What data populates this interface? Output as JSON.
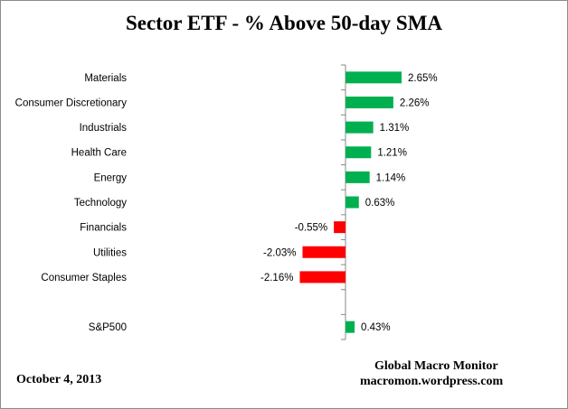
{
  "chart_data": {
    "type": "bar",
    "orientation": "horizontal",
    "title": "Sector ETF - % Above 50-day SMA",
    "categories": [
      "Materials",
      "Consumer Discretionary",
      "Industrials",
      "Health Care",
      "Energy",
      "Technology",
      "Financials",
      "Utilities",
      "Consumer Staples",
      "",
      "S&P500"
    ],
    "values": [
      2.65,
      2.26,
      1.31,
      1.21,
      1.14,
      0.63,
      -0.55,
      -2.03,
      -2.16,
      null,
      0.43
    ],
    "data_labels": [
      "2.65%",
      "2.26%",
      "1.31%",
      "1.21%",
      "1.14%",
      "0.63%",
      "-0.55%",
      "-2.03%",
      "-2.16%",
      "",
      "0.43%"
    ],
    "positive_color": "#00b050",
    "negative_color": "#ff0000",
    "grid": false,
    "legend": "none"
  },
  "footer": {
    "date": "October 4, 2013",
    "source_name": "Global Macro Monitor",
    "source_url": "macromon.wordpress.com"
  }
}
